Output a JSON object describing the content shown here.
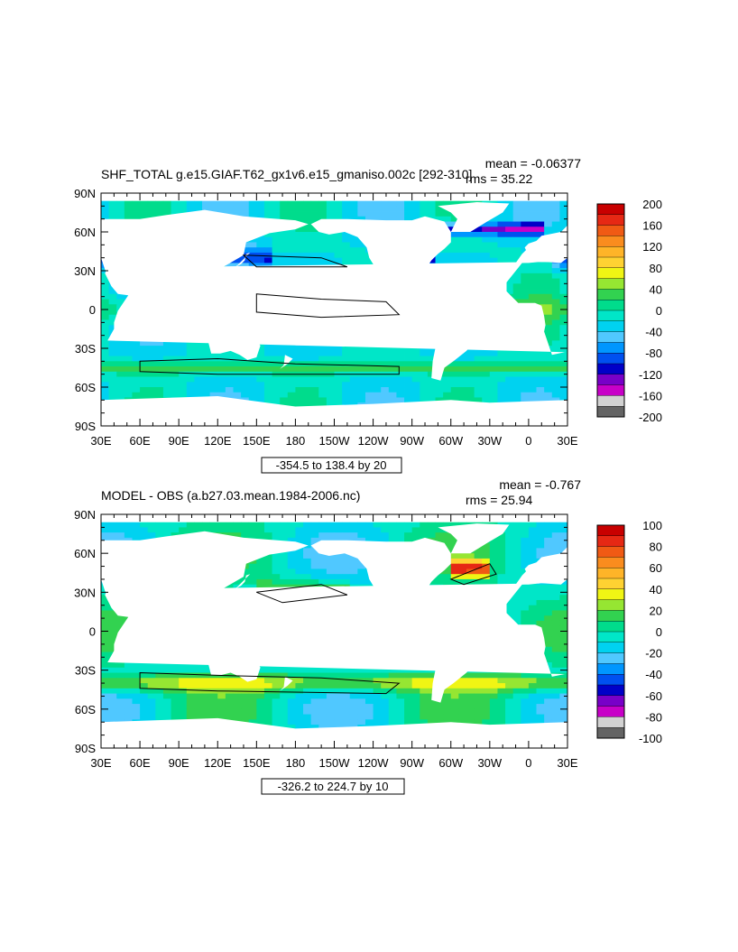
{
  "colors": {
    "land": "#ffffff",
    "frame": "#000000",
    "contour": "#000000"
  },
  "chart_data": [
    {
      "type": "heatmap",
      "title": "SHF_TOTAL g.e15.GIAF.T62_gx1v6.e15_gmaniso.002c [292-310]",
      "mean_label": "mean = -0.06377",
      "rms_label": "rms = 35.22",
      "x_ticks": [
        "30E",
        "60E",
        "90E",
        "120E",
        "150E",
        "180",
        "150W",
        "120W",
        "90W",
        "60W",
        "30W",
        "0",
        "30E"
      ],
      "y_ticks": [
        "90N",
        "60N",
        "30N",
        "0",
        "30S",
        "60S",
        "90S"
      ],
      "range_label": "-354.5 to 138.4 by 20",
      "colorbar_labels": [
        "200",
        "160",
        "120",
        "80",
        "40",
        "0",
        "-40",
        "-80",
        "-120",
        "-160",
        "-200"
      ],
      "colorbar_colors": [
        "#c80000",
        "#e62814",
        "#f05a14",
        "#fa8c1e",
        "#ffb428",
        "#ffd232",
        "#f0f514",
        "#96e632",
        "#32d250",
        "#00dc8c",
        "#00e6c8",
        "#00d2f0",
        "#50c8ff",
        "#0096ff",
        "#0050f0",
        "#0000c8",
        "#7800c8",
        "#c800c8",
        "#d2d2d2",
        "#646464"
      ],
      "contour_interval": 20,
      "data_min": -354.5,
      "data_max": 138.4
    },
    {
      "type": "heatmap",
      "title": "MODEL - OBS (a.b27.03.mean.1984-2006.nc)",
      "mean_label": "mean = -0.767",
      "rms_label": "rms = 25.94",
      "x_ticks": [
        "30E",
        "60E",
        "90E",
        "120E",
        "150E",
        "180",
        "150W",
        "120W",
        "90W",
        "60W",
        "30W",
        "0",
        "30E"
      ],
      "y_ticks": [
        "90N",
        "60N",
        "30N",
        "0",
        "30S",
        "60S",
        "90S"
      ],
      "range_label": "-326.2 to 224.7 by 10",
      "colorbar_labels": [
        "100",
        "80",
        "60",
        "40",
        "20",
        "0",
        "-20",
        "-40",
        "-60",
        "-80",
        "-100"
      ],
      "colorbar_colors": [
        "#c80000",
        "#e62814",
        "#f05a14",
        "#fa8c1e",
        "#ffb428",
        "#ffd232",
        "#f0f514",
        "#96e632",
        "#32d250",
        "#00dc8c",
        "#00e6c8",
        "#00d2f0",
        "#50c8ff",
        "#0096ff",
        "#0050f0",
        "#0000c8",
        "#7800c8",
        "#c800c8",
        "#d2d2d2",
        "#646464"
      ],
      "contour_interval": 10,
      "data_min": -326.2,
      "data_max": 224.7
    }
  ]
}
